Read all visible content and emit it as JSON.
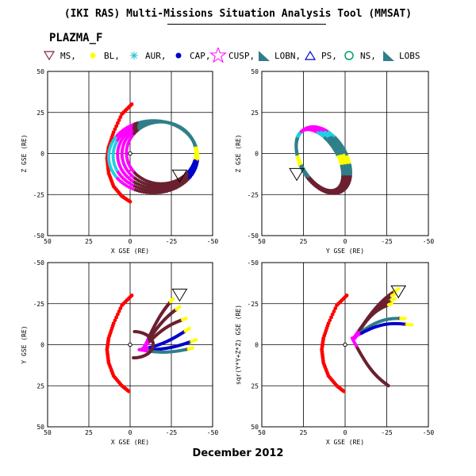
{
  "header": {
    "title": "(IKI RAS) Multi-Missions Situation Analysis Tool (MMSAT)",
    "mission": "PLAZMA_F"
  },
  "legend": [
    {
      "label": "MS,",
      "symbol": "triangle-down",
      "color": "#7a2a3a"
    },
    {
      "label": "BL,",
      "symbol": "dot",
      "color": "#ffff00"
    },
    {
      "label": "AUR,",
      "symbol": "asterisk",
      "color": "#20c0d0"
    },
    {
      "label": "CAP,",
      "symbol": "dot",
      "color": "#0000cc"
    },
    {
      "label": "CUSP,",
      "symbol": "star",
      "color": "#ff00ff"
    },
    {
      "label": "LOBN,",
      "symbol": "right-triangle",
      "color": "#2f7f8a"
    },
    {
      "label": "PS,",
      "symbol": "triangle-up",
      "color": "#0000cc"
    },
    {
      "label": "NS,",
      "symbol": "circle",
      "color": "#00a070"
    },
    {
      "label": "LOBS",
      "symbol": "right-triangle",
      "color": "#2f7f8a"
    }
  ],
  "footer": {
    "date": "December 2012"
  },
  "colors": {
    "bow_shock": "#ff0000",
    "magnetosheath": "#6b2030",
    "lobe": "#2f7f8a",
    "boundary_layer": "#ffff00",
    "aurora": "#20d0e0",
    "cap": "#0000cc",
    "cusp": "#ff00ff"
  },
  "chart_data": [
    {
      "type": "scatter",
      "xlabel": "X GSE (RE)",
      "ylabel": "Z GSE (RE)",
      "xlim": [
        50,
        -50
      ],
      "ylim": [
        -50,
        50
      ],
      "xticks": [
        50,
        25,
        0,
        -25,
        -50
      ],
      "yticks": [
        50,
        25,
        0,
        -25,
        -50
      ],
      "grid": true,
      "bow_shock": {
        "x": [
          -1,
          5,
          10,
          13,
          14,
          13,
          10,
          5,
          -1
        ],
        "y": [
          30,
          24,
          13,
          4,
          -3,
          -12,
          -20,
          -26,
          -30
        ]
      },
      "orbit": {
        "cx": -14,
        "cy": -2,
        "rx": 27,
        "ry": 22,
        "spread": 5
      },
      "ms_marker": {
        "x": -30,
        "y": -13
      }
    },
    {
      "type": "scatter",
      "xlabel": "Y GSE (RE)",
      "ylabel": "Z GSE (RE)",
      "xlim": [
        50,
        -50
      ],
      "ylim": [
        -50,
        50
      ],
      "xticks": [
        50,
        25,
        0,
        -25,
        -50
      ],
      "yticks": [
        50,
        25,
        0,
        -25,
        -50
      ],
      "grid": true,
      "orbit": {
        "cx": 13,
        "cy": -4,
        "rx": 14,
        "ry": 22,
        "tilt": -30,
        "spread": 3
      },
      "ms_marker": {
        "x": 29,
        "y": -12
      }
    },
    {
      "type": "scatter",
      "xlabel": "X GSE (RE)",
      "ylabel": "Y GSE (RE)",
      "xlim": [
        50,
        -50
      ],
      "ylim": [
        50,
        -50
      ],
      "xticks": [
        50,
        25,
        0,
        -25,
        -50
      ],
      "yticks": [
        -50,
        -25,
        0,
        25,
        50
      ],
      "grid": true,
      "bow_shock": {
        "x": [
          -1,
          5,
          10,
          13,
          14,
          13,
          10,
          5,
          0
        ],
        "y": [
          -30,
          -24,
          -13,
          -4,
          3,
          11,
          19,
          25,
          29
        ]
      },
      "ms_marker": {
        "x": -30,
        "y": -31
      }
    },
    {
      "type": "scatter",
      "xlabel": "X GSE (RE)",
      "ylabel": "sqr(Y*Y+Z*Z) GSE (RE)",
      "xlim": [
        50,
        -50
      ],
      "ylim": [
        50,
        -50
      ],
      "xticks": [
        50,
        25,
        0,
        -25,
        -50
      ],
      "yticks": [
        -50,
        -25,
        0,
        25,
        50
      ],
      "grid": true,
      "bow_shock": {
        "x": [
          -1,
          5,
          10,
          13,
          14,
          13,
          10,
          5,
          0
        ],
        "y": [
          -30,
          -24,
          -13,
          -4,
          3,
          11,
          19,
          25,
          29
        ]
      },
      "ms_marker": {
        "x": -32,
        "y": -33
      }
    }
  ]
}
